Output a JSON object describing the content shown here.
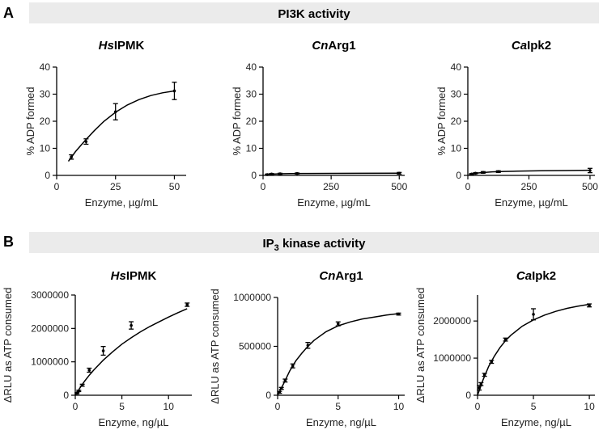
{
  "panels": [
    {
      "letter": "A",
      "banner_title": "PI3K activity"
    },
    {
      "letter": "B",
      "banner_title_main": "IP",
      "banner_title_sub": "3",
      "banner_title_rest": " kinase activity"
    }
  ],
  "colors": {
    "banner_bg": "#ebebeb",
    "line": "#000000",
    "axis": "#000000",
    "text": "#222222"
  },
  "chart_data": [
    {
      "type": "line",
      "panel": "A",
      "title_italic": "Hs",
      "title_rest": "IPMK",
      "xlabel": "Enzyme, µg/mL",
      "ylabel": "% ADP formed",
      "xlim": [
        0,
        55
      ],
      "ylim": [
        0,
        40
      ],
      "xticks": [
        0,
        25,
        50
      ],
      "yticks": [
        0,
        10,
        20,
        30,
        40
      ],
      "xticklabels": [
        "0",
        "25",
        "50"
      ],
      "yticklabels": [
        "0",
        "10",
        "20",
        "30",
        "40"
      ],
      "points": {
        "x": [
          6.25,
          12.5,
          25,
          50
        ],
        "y": [
          6.8,
          12.5,
          23.5,
          31.2
        ],
        "err": [
          0.8,
          1.0,
          3.0,
          3.2
        ]
      },
      "fit": {
        "x": [
          5,
          8,
          12,
          16,
          20,
          25,
          30,
          35,
          40,
          45,
          50
        ],
        "y": [
          5.2,
          8.8,
          12.8,
          16.5,
          19.9,
          23.3,
          26.0,
          28.0,
          29.5,
          30.5,
          31.2
        ]
      }
    },
    {
      "type": "line",
      "panel": "A",
      "title_italic": "Cn",
      "title_rest": "Arg1",
      "xlabel": "Enzyme, µg/mL",
      "ylabel": "% ADP formed",
      "xlim": [
        0,
        520
      ],
      "ylim": [
        0,
        40
      ],
      "xticks": [
        0,
        250,
        500
      ],
      "yticks": [
        0,
        10,
        20,
        30,
        40
      ],
      "xticklabels": [
        "0",
        "250",
        "500"
      ],
      "yticklabels": [
        "0",
        "10",
        "20",
        "30",
        "40"
      ],
      "points": {
        "x": [
          15.6,
          31.25,
          62.5,
          125,
          500
        ],
        "y": [
          0.3,
          0.5,
          0.6,
          0.7,
          0.8
        ],
        "err": [
          0.2,
          0.2,
          0.2,
          0.2,
          0.3
        ]
      },
      "fit": {
        "x": [
          10,
          30,
          60,
          100,
          150,
          250,
          350,
          500
        ],
        "y": [
          0.2,
          0.45,
          0.6,
          0.68,
          0.72,
          0.76,
          0.78,
          0.8
        ]
      }
    },
    {
      "type": "line",
      "panel": "A",
      "title_italic": "Ca",
      "title_rest": "Ipk2",
      "xlabel": "Enzyme, µg/mL",
      "ylabel": "% ADP formed",
      "xlim": [
        0,
        520
      ],
      "ylim": [
        0,
        40
      ],
      "xticks": [
        0,
        250,
        500
      ],
      "yticks": [
        0,
        10,
        20,
        30,
        40
      ],
      "xticklabels": [
        "0",
        "250",
        "500"
      ],
      "yticklabels": [
        "0",
        "10",
        "20",
        "30",
        "40"
      ],
      "points": {
        "x": [
          15.6,
          31.25,
          62.5,
          125,
          500
        ],
        "y": [
          0.5,
          0.8,
          1.1,
          1.4,
          1.8
        ],
        "err": [
          0.2,
          0.2,
          0.3,
          0.3,
          0.8
        ]
      },
      "fit": {
        "x": [
          5,
          20,
          50,
          100,
          150,
          200,
          300,
          400,
          500
        ],
        "y": [
          0.3,
          0.7,
          1.0,
          1.3,
          1.45,
          1.55,
          1.7,
          1.8,
          1.9
        ]
      }
    },
    {
      "type": "line",
      "panel": "B",
      "title_italic": "Hs",
      "title_rest": "IPMK",
      "xlabel": "Enzyme, ng/µL",
      "ylabel": "ΔRLU as ATP consumed",
      "xlim": [
        0,
        12.5
      ],
      "ylim": [
        0,
        3000000
      ],
      "xticks": [
        0,
        5,
        10
      ],
      "yticks": [
        0,
        1000000,
        2000000,
        3000000
      ],
      "xticklabels": [
        "0",
        "5",
        "10"
      ],
      "yticklabels": [
        "0",
        "1000000",
        "2000000",
        "3000000"
      ],
      "points": {
        "x": [
          0.1875,
          0.375,
          0.75,
          1.5,
          3,
          6,
          12
        ],
        "y": [
          60000,
          130000,
          300000,
          750000,
          1330000,
          2090000,
          2710000
        ],
        "err": [
          20000,
          20000,
          30000,
          60000,
          130000,
          110000,
          50000
        ]
      },
      "fit": {
        "x": [
          0,
          0.5,
          1,
          1.5,
          2,
          3,
          4,
          5,
          6,
          7,
          8,
          9,
          10,
          11,
          12
        ],
        "y": [
          0,
          220000,
          420000,
          600000,
          760000,
          1050000,
          1300000,
          1530000,
          1720000,
          1900000,
          2060000,
          2200000,
          2340000,
          2470000,
          2590000
        ]
      }
    },
    {
      "type": "line",
      "panel": "B",
      "title_italic": "Cn",
      "title_rest": "Arg1",
      "xlabel": "Enzyme, ng/µL",
      "ylabel": "ΔRLU as ATP consumed",
      "xlim": [
        0,
        10.5
      ],
      "ylim": [
        0,
        1000000
      ],
      "xticks": [
        0,
        5,
        10
      ],
      "yticks": [
        0,
        500000,
        1000000
      ],
      "xticklabels": [
        "0",
        "5",
        "10"
      ],
      "yticklabels": [
        "0",
        "500000",
        "1000000"
      ],
      "points": {
        "x": [
          0.156,
          0.3125,
          0.625,
          1.25,
          2.5,
          5,
          10
        ],
        "y": [
          30000,
          70000,
          150000,
          300000,
          510000,
          730000,
          830000
        ],
        "err": [
          10000,
          10000,
          15000,
          20000,
          30000,
          20000,
          10000
        ]
      },
      "fit": {
        "x": [
          0,
          0.5,
          1,
          1.5,
          2,
          2.5,
          3,
          4,
          5,
          6,
          7,
          8,
          9,
          10
        ],
        "y": [
          0,
          120000,
          250000,
          350000,
          430000,
          500000,
          560000,
          650000,
          710000,
          750000,
          780000,
          800000,
          820000,
          835000
        ]
      }
    },
    {
      "type": "line",
      "panel": "B",
      "title_italic": "Ca",
      "title_rest": "Ipk2",
      "xlabel": "Enzyme, ng/µL",
      "ylabel": "ΔRLU as ATP consumed",
      "xlim": [
        0,
        10.5
      ],
      "ylim": [
        0,
        2700000
      ],
      "xticks": [
        0,
        5,
        10
      ],
      "yticks": [
        0,
        1000000,
        2000000
      ],
      "xticklabels": [
        "0",
        "5",
        "10"
      ],
      "yticklabels": [
        "0",
        "1000000",
        "2000000"
      ],
      "points": {
        "x": [
          0.156,
          0.3125,
          0.625,
          1.25,
          2.5,
          5,
          10
        ],
        "y": [
          200000,
          300000,
          550000,
          900000,
          1500000,
          2180000,
          2420000
        ],
        "err": [
          60000,
          40000,
          40000,
          40000,
          40000,
          150000,
          40000
        ]
      },
      "fit": {
        "x": [
          0,
          0.5,
          1,
          1.5,
          2,
          2.5,
          3,
          4,
          5,
          6,
          7,
          8,
          9,
          10
        ],
        "y": [
          0,
          420000,
          780000,
          1050000,
          1280000,
          1470000,
          1620000,
          1860000,
          2030000,
          2160000,
          2260000,
          2340000,
          2400000,
          2450000
        ]
      }
    }
  ]
}
